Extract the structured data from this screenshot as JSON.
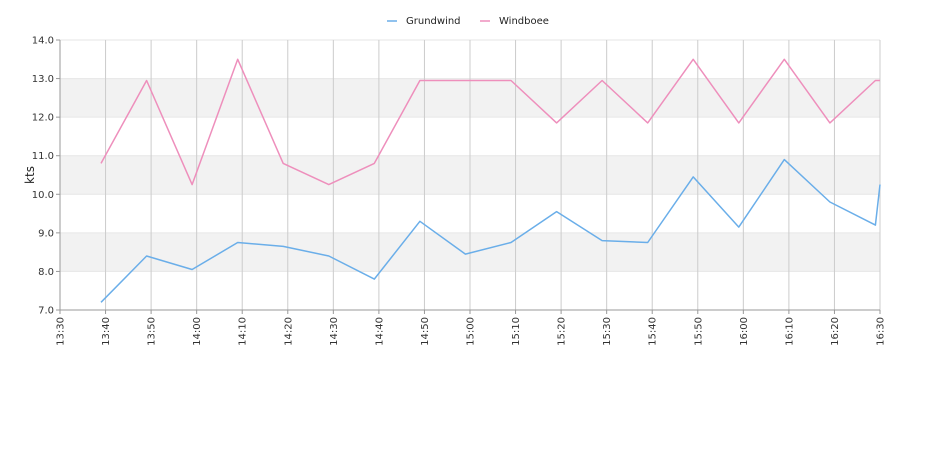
{
  "chart_data": {
    "type": "line",
    "title": "",
    "xlabel": "",
    "ylabel": "kts",
    "ylim": [
      7.0,
      14.0
    ],
    "y_ticks": [
      "7.0",
      "8.0",
      "9.0",
      "10.0",
      "11.0",
      "12.0",
      "13.0",
      "14.0"
    ],
    "x_tick_labels": [
      "13:30",
      "13:40",
      "13:50",
      "14:00",
      "14:10",
      "14:20",
      "14:30",
      "14:40",
      "14:50",
      "15:00",
      "15:10",
      "15:20",
      "15:30",
      "15:40",
      "15:50",
      "16:00",
      "16:10",
      "16:20",
      "16:30"
    ],
    "x_range": [
      "13:30",
      "16:30"
    ],
    "grid": "vertical lines at x ticks; alternating horizontal bands",
    "legend_position": "top-center",
    "series": [
      {
        "name": "Grundwind",
        "color": "#6aaee9",
        "x": [
          "13:39",
          "13:49",
          "13:59",
          "14:09",
          "14:19",
          "14:29",
          "14:39",
          "14:49",
          "14:59",
          "15:09",
          "15:19",
          "15:29",
          "15:39",
          "15:49",
          "15:59",
          "16:09",
          "16:19",
          "16:29",
          "16:30"
        ],
        "values": [
          7.2,
          8.4,
          8.05,
          8.75,
          8.65,
          8.4,
          7.8,
          9.3,
          8.45,
          8.75,
          9.55,
          8.8,
          8.75,
          10.45,
          9.15,
          10.9,
          9.8,
          9.2,
          10.25
        ]
      },
      {
        "name": "Windboee",
        "color": "#ee8fbc",
        "x": [
          "13:39",
          "13:49",
          "13:59",
          "14:09",
          "14:19",
          "14:29",
          "14:39",
          "14:49",
          "14:59",
          "15:09",
          "15:19",
          "15:29",
          "15:39",
          "15:49",
          "15:59",
          "16:09",
          "16:19",
          "16:29",
          "16:30"
        ],
        "values": [
          10.8,
          12.95,
          10.25,
          13.5,
          10.8,
          10.25,
          10.8,
          12.95,
          12.95,
          12.95,
          11.85,
          12.95,
          11.85,
          13.5,
          11.85,
          13.5,
          11.85,
          12.95,
          12.95
        ]
      }
    ]
  }
}
